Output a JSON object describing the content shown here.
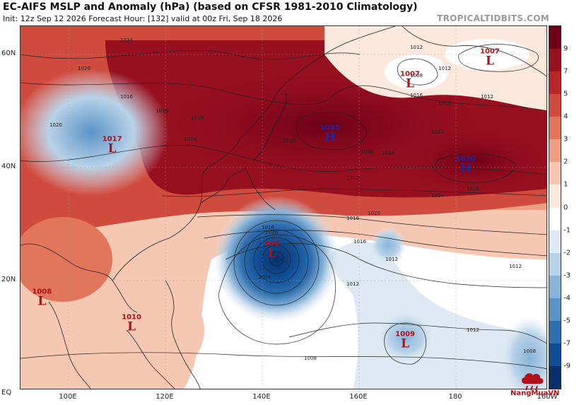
{
  "header": {
    "title": "EC-AIFS MSLP and Anomaly (hPa) (based on CFSR 1981-2010 Climatology)",
    "subtitle": "Init: 12z Sep 12 2026   Forecast Hour: [132]   valid at 00z Fri, Sep 18 2026",
    "brand": "TROPICALTIDBITS.COM"
  },
  "axes": {
    "lat_labels": [
      "60N",
      "40N",
      "20N",
      "EQ"
    ],
    "lon_labels": [
      "100E",
      "120E",
      "140E",
      "160E",
      "180",
      "160W"
    ]
  },
  "colorbar": {
    "ticks": [
      "9",
      "7",
      "5",
      "4",
      "3",
      "2",
      "1",
      "0",
      "-1",
      "-2",
      "-3",
      "-4",
      "-5",
      "-7",
      "-9"
    ],
    "colors": [
      "#6e0018",
      "#97101f",
      "#b8262a",
      "#cf4b3d",
      "#e2765b",
      "#ee9f81",
      "#f6c7b3",
      "#fde8dd",
      "#ffffff",
      "#dfe9f3",
      "#b8d2e8",
      "#88b4d8",
      "#5a93c6",
      "#2f6eaf",
      "#0f4d95",
      "#08306b"
    ]
  },
  "pressure_centers": [
    {
      "type": "L",
      "value": "1007",
      "lon": 170.5,
      "lat": 55.5
    },
    {
      "type": "L",
      "value": "1007",
      "lon": 187.0,
      "lat": 59.5
    },
    {
      "type": "H",
      "value": "1035",
      "lon": 154.0,
      "lat": 46.0
    },
    {
      "type": "H",
      "value": "1030",
      "lon": 182.0,
      "lat": 40.5
    },
    {
      "type": "L",
      "value": "1017",
      "lon": 109.0,
      "lat": 44.0
    },
    {
      "type": "L",
      "value": "988",
      "lon": 142.0,
      "lat": 25.5
    },
    {
      "type": "L",
      "value": "1008",
      "lon": 94.5,
      "lat": 17.0
    },
    {
      "type": "L",
      "value": "1010",
      "lon": 113.0,
      "lat": 12.5
    },
    {
      "type": "L",
      "value": "1009",
      "lon": 169.5,
      "lat": 9.5
    }
  ],
  "isobar_labels": [
    "1024",
    "1020",
    "1016",
    "1016",
    "1020",
    "1016",
    "1024",
    "1012",
    "1012",
    "1008",
    "1016",
    "1020",
    "1024",
    "1028",
    "1024",
    "1028",
    "1020",
    "1016",
    "1012",
    "1016",
    "1024",
    "1020",
    "1016",
    "1012",
    "1012",
    "1008",
    "1004",
    "1016",
    "1012",
    "1012",
    "1008",
    "1012"
  ],
  "watermark": "NangMuaVN"
}
